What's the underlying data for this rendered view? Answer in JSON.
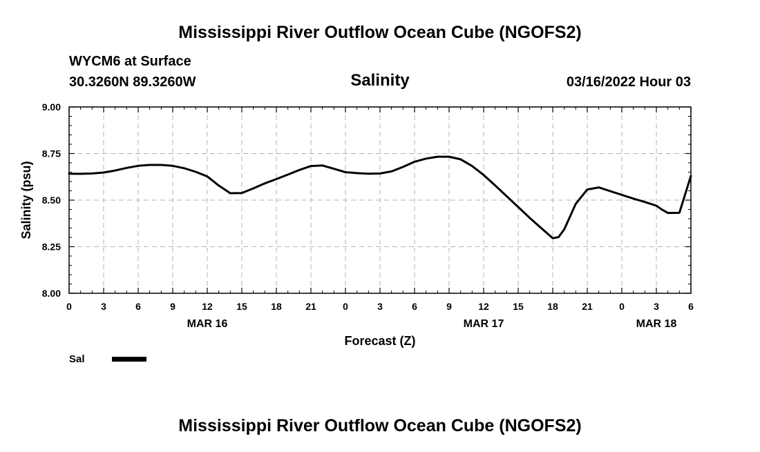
{
  "header": {
    "title": "Mississippi River Outflow Ocean Cube (NGOFS2)",
    "station": "WYCM6 at Surface",
    "coords": "30.3260N  89.3260W",
    "datetime": "03/16/2022 Hour 03"
  },
  "footer": {
    "title": "Mississippi River Outflow Ocean Cube (NGOFS2)"
  },
  "chart_data": {
    "type": "line",
    "title": "Salinity",
    "xlabel": "Forecast (Z)",
    "ylabel": "Salinity (psu)",
    "xlim": [
      0,
      54
    ],
    "ylim": [
      8.0,
      9.0
    ],
    "x_ticks": [
      0,
      3,
      6,
      9,
      12,
      15,
      18,
      21,
      24,
      27,
      30,
      33,
      36,
      39,
      42,
      45,
      48,
      51,
      54
    ],
    "x_tick_labels": [
      "0",
      "3",
      "6",
      "9",
      "12",
      "15",
      "18",
      "21",
      "0",
      "3",
      "6",
      "9",
      "12",
      "15",
      "18",
      "21",
      "0",
      "3",
      "6"
    ],
    "y_ticks": [
      8.0,
      8.25,
      8.5,
      8.75,
      9.0
    ],
    "y_tick_labels": [
      "8.00",
      "8.25",
      "8.50",
      "8.75",
      "9.00"
    ],
    "date_labels": [
      {
        "x": 12,
        "label": "MAR 16"
      },
      {
        "x": 36,
        "label": "MAR 17"
      },
      {
        "x": 51,
        "label": "MAR 18"
      }
    ],
    "grid": true,
    "legend": "bottom-left",
    "series": [
      {
        "name": "Sal",
        "color": "#000000",
        "x": [
          0,
          1,
          2,
          3,
          4,
          5,
          6,
          7,
          8,
          9,
          10,
          11,
          12,
          13,
          14,
          15,
          16,
          17,
          18,
          19,
          20,
          21,
          22,
          23,
          24,
          25,
          26,
          27,
          28,
          29,
          30,
          31,
          32,
          33,
          34,
          35,
          36,
          37,
          38,
          39,
          40,
          41,
          42,
          42.5,
          43,
          44,
          45,
          46,
          47,
          48,
          49,
          50,
          51,
          51.5,
          52,
          53,
          54
        ],
        "values": [
          8.642,
          8.641,
          8.643,
          8.648,
          8.659,
          8.673,
          8.684,
          8.689,
          8.689,
          8.684,
          8.671,
          8.652,
          8.627,
          8.578,
          8.537,
          8.538,
          8.563,
          8.59,
          8.613,
          8.637,
          8.662,
          8.683,
          8.686,
          8.668,
          8.65,
          8.645,
          8.642,
          8.643,
          8.654,
          8.678,
          8.706,
          8.723,
          8.733,
          8.733,
          8.719,
          8.683,
          8.635,
          8.579,
          8.521,
          8.463,
          8.405,
          8.35,
          8.296,
          8.301,
          8.343,
          8.48,
          8.557,
          8.568,
          8.548,
          8.528,
          8.508,
          8.49,
          8.47,
          8.449,
          8.431,
          8.432,
          8.63
        ]
      }
    ]
  }
}
